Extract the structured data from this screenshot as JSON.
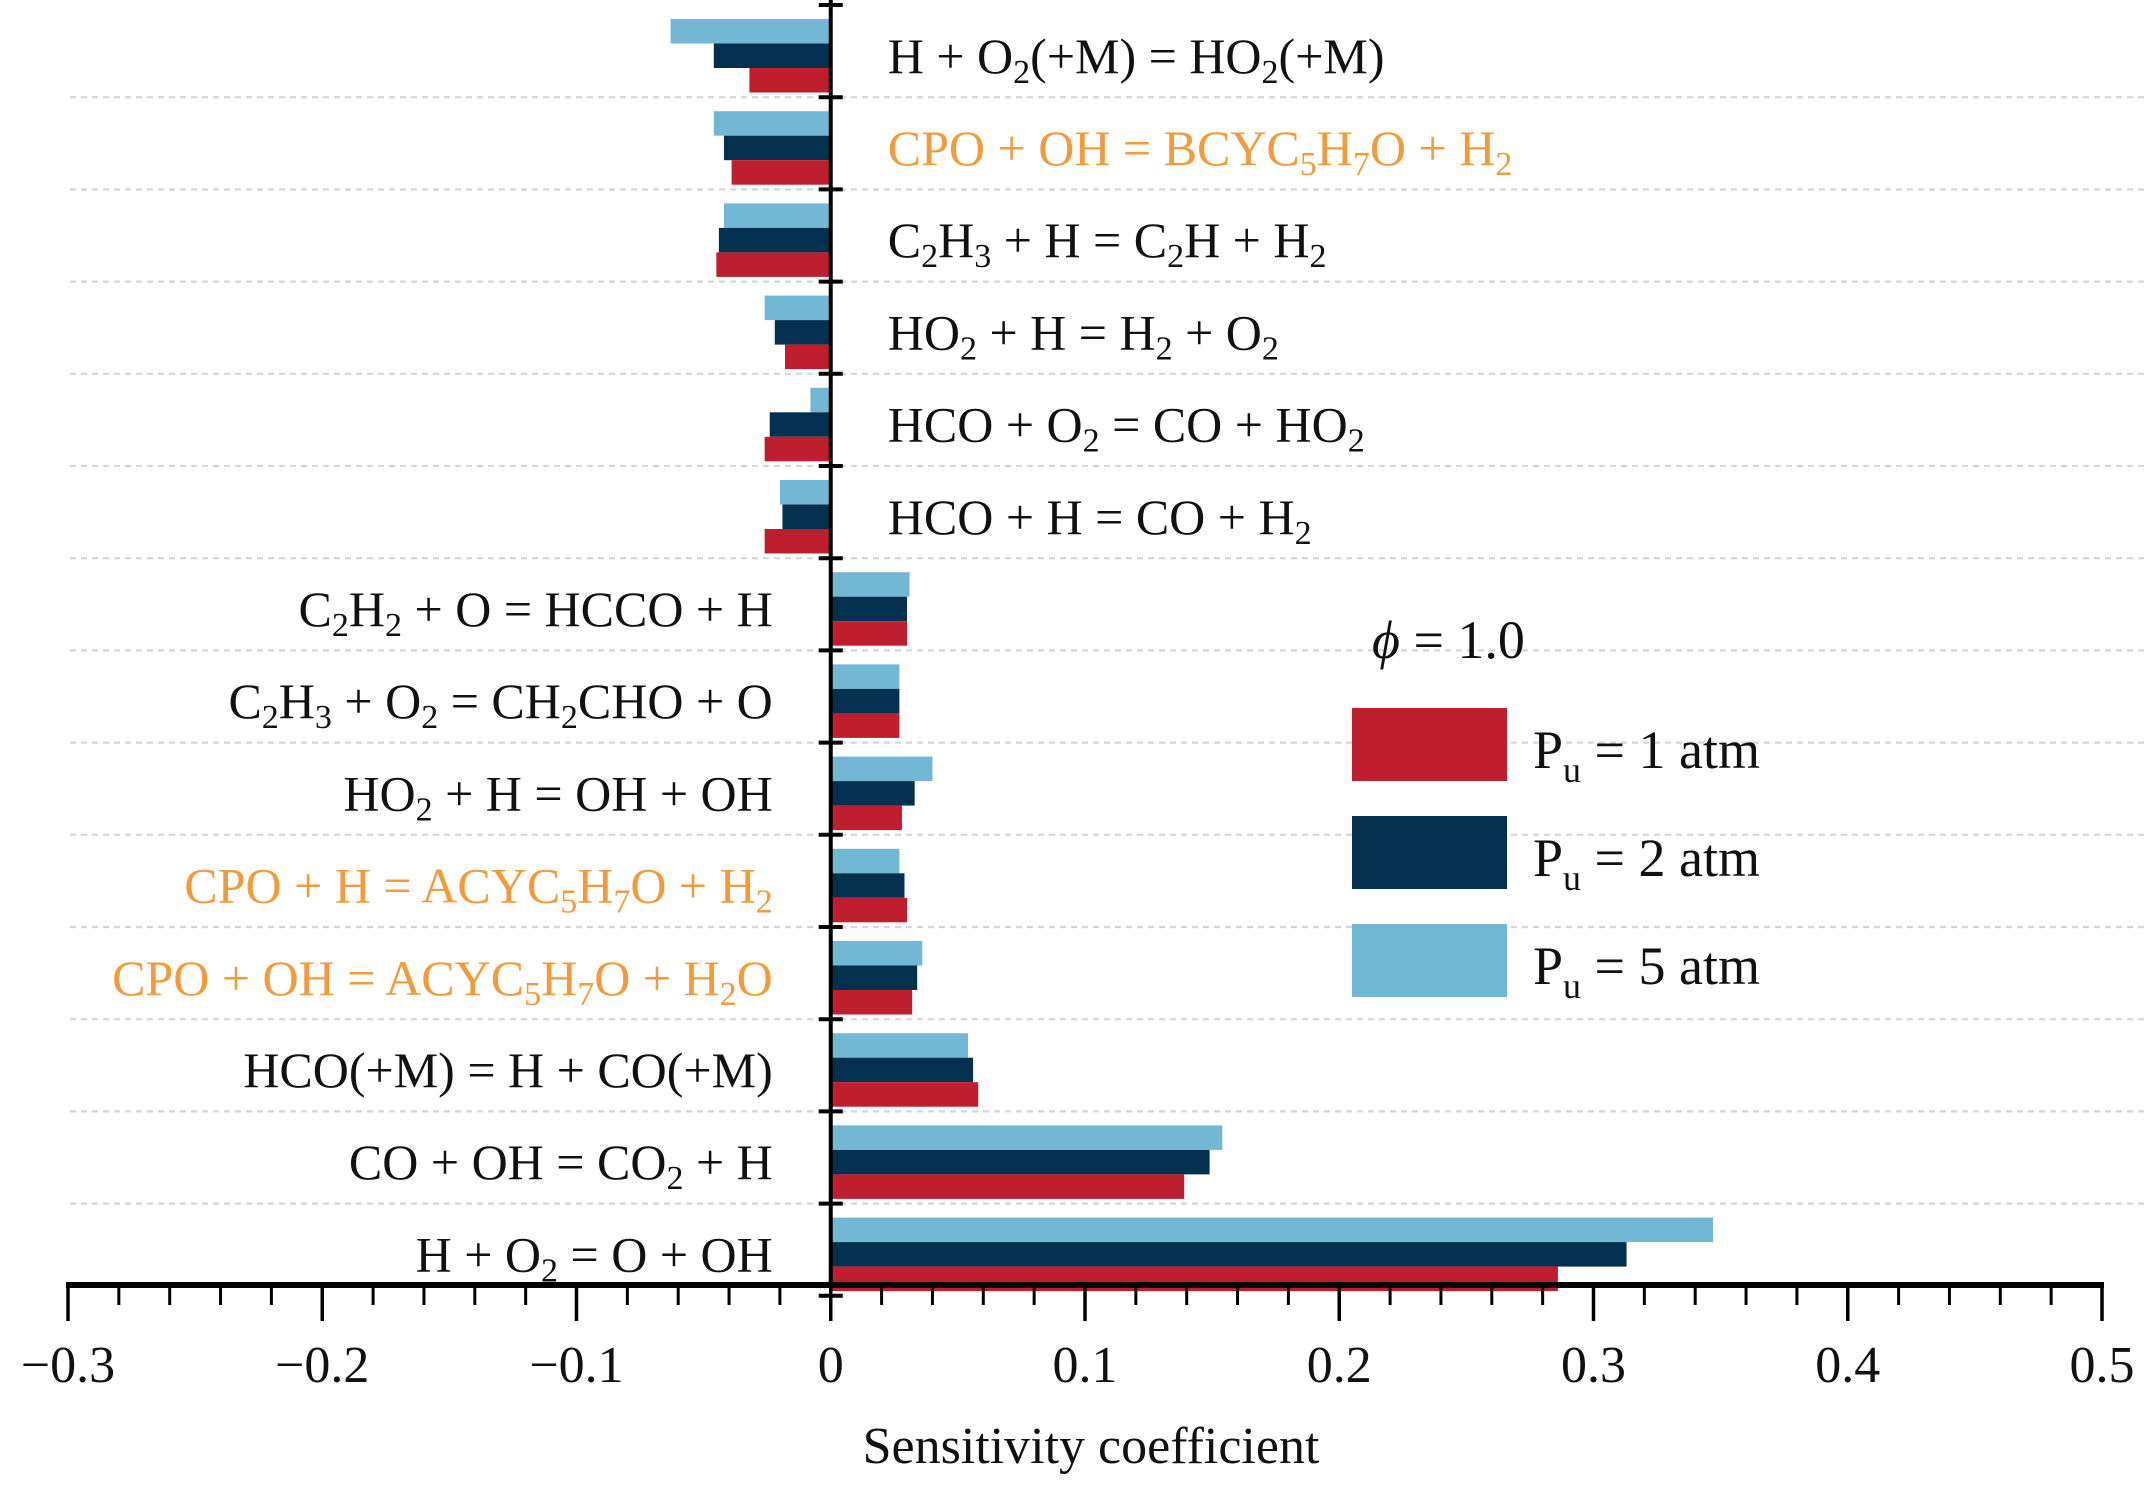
{
  "chart_data": {
    "type": "bar",
    "orientation": "horizontal",
    "title": "",
    "xlabel": "Sensitivity coefficient",
    "ylabel": "",
    "xlim": [
      -0.3,
      0.5
    ],
    "xticks": [
      -0.3,
      -0.2,
      -0.1,
      0,
      0.1,
      0.2,
      0.3,
      0.4,
      0.5
    ],
    "xtick_labels": [
      "−0.3",
      "−0.2",
      "−0.1",
      "0",
      "0.1",
      "0.2",
      "0.3",
      "0.4",
      "0.5"
    ],
    "minor_ticks_per_major": 5,
    "grid": "horizontal dotted",
    "legend": {
      "position": "right",
      "title": "ϕ = 1.0",
      "title_symbol": "ϕ",
      "title_value": " = 1.0",
      "entries": [
        {
          "name": "P_u = 1 atm",
          "main": "P",
          "sub": "u",
          "rest": " = 1 atm",
          "color": "#be1e2d"
        },
        {
          "name": "P_u = 2 atm",
          "main": "P",
          "sub": "u",
          "rest": " = 2 atm",
          "color": "#04304f"
        },
        {
          "name": "P_u = 5 atm",
          "main": "P",
          "sub": "u",
          "rest": " = 5 atm",
          "color": "#72b8d5"
        }
      ]
    },
    "highlight_color": "#f39a3b",
    "categories": [
      {
        "label": "H + O2(+M) = HO2(+M)",
        "parts": [
          [
            "H + O",
            ""
          ],
          [
            "2",
            "sub"
          ],
          [
            "(+M) = HO",
            ""
          ],
          [
            "2",
            "sub"
          ],
          [
            "(+M)",
            ""
          ]
        ],
        "highlight": false
      },
      {
        "label": "CPO + OH = BCYC5H7O + H2",
        "parts": [
          [
            "CPO + OH = BCYC",
            ""
          ],
          [
            "5",
            "sub"
          ],
          [
            "H",
            ""
          ],
          [
            "7",
            "sub"
          ],
          [
            "O + H",
            ""
          ],
          [
            "2",
            "sub"
          ]
        ],
        "highlight": true
      },
      {
        "label": "C2H3 + H = C2H + H2",
        "parts": [
          [
            "C",
            ""
          ],
          [
            "2",
            "sub"
          ],
          [
            "H",
            ""
          ],
          [
            "3",
            "sub"
          ],
          [
            " + H = C",
            ""
          ],
          [
            "2",
            "sub"
          ],
          [
            "H + H",
            ""
          ],
          [
            "2",
            "sub"
          ]
        ],
        "highlight": false
      },
      {
        "label": "HO2 + H = H2 + O2",
        "parts": [
          [
            "HO",
            ""
          ],
          [
            "2",
            "sub"
          ],
          [
            " + H = H",
            ""
          ],
          [
            "2",
            "sub"
          ],
          [
            " + O",
            ""
          ],
          [
            "2",
            "sub"
          ]
        ],
        "highlight": false
      },
      {
        "label": "HCO + O2 = CO + HO2",
        "parts": [
          [
            "HCO + O",
            ""
          ],
          [
            "2",
            "sub"
          ],
          [
            " = CO + HO",
            ""
          ],
          [
            "2",
            "sub"
          ]
        ],
        "highlight": false
      },
      {
        "label": "HCO + H = CO + H2",
        "parts": [
          [
            "HCO + H = CO + H",
            ""
          ],
          [
            "2",
            "sub"
          ]
        ],
        "highlight": false
      },
      {
        "label": "C2H2 + O = HCCO + H",
        "parts": [
          [
            "C",
            ""
          ],
          [
            "2",
            "sub"
          ],
          [
            "H",
            ""
          ],
          [
            "2",
            "sub"
          ],
          [
            " + O = HCCO + H",
            ""
          ]
        ],
        "highlight": false
      },
      {
        "label": "C2H3 + O2 = CH2CHO + O",
        "parts": [
          [
            "C",
            ""
          ],
          [
            "2",
            "sub"
          ],
          [
            "H",
            ""
          ],
          [
            "3",
            "sub"
          ],
          [
            " + O",
            ""
          ],
          [
            "2",
            "sub"
          ],
          [
            " = CH",
            ""
          ],
          [
            "2",
            "sub"
          ],
          [
            "CHO + O",
            ""
          ]
        ],
        "highlight": false
      },
      {
        "label": "HO2 + H = OH + OH",
        "parts": [
          [
            "HO",
            ""
          ],
          [
            "2",
            "sub"
          ],
          [
            " + H = OH + OH",
            ""
          ]
        ],
        "highlight": false
      },
      {
        "label": "CPO + H = ACYC5H7O + H2",
        "parts": [
          [
            "CPO + H = ACYC",
            ""
          ],
          [
            "5",
            "sub"
          ],
          [
            "H",
            ""
          ],
          [
            "7",
            "sub"
          ],
          [
            "O + H",
            ""
          ],
          [
            "2",
            "sub"
          ]
        ],
        "highlight": true
      },
      {
        "label": "CPO + OH = ACYC5H7O + H2O",
        "parts": [
          [
            "CPO + OH = ACYC",
            ""
          ],
          [
            "5",
            "sub"
          ],
          [
            "H",
            ""
          ],
          [
            "7",
            "sub"
          ],
          [
            "O + H",
            ""
          ],
          [
            "2",
            "sub"
          ],
          [
            "O",
            ""
          ]
        ],
        "highlight": true
      },
      {
        "label": "HCO(+M) = H + CO(+M)",
        "parts": [
          [
            "HCO(+M) = H + CO(+M)",
            ""
          ]
        ],
        "highlight": false
      },
      {
        "label": "CO + OH = CO2 + H",
        "parts": [
          [
            "CO + OH = CO",
            ""
          ],
          [
            "2",
            "sub"
          ],
          [
            " + H",
            ""
          ]
        ],
        "highlight": false
      },
      {
        "label": "H + O2 = O + OH",
        "parts": [
          [
            "H + O",
            ""
          ],
          [
            "2",
            "sub"
          ],
          [
            " = O + OH",
            ""
          ]
        ],
        "highlight": false
      }
    ],
    "series": [
      {
        "name": "P_u = 5 atm",
        "color": "#72b8d5",
        "values": [
          -0.063,
          -0.046,
          -0.042,
          -0.026,
          -0.008,
          -0.02,
          0.031,
          0.027,
          0.04,
          0.027,
          0.036,
          0.054,
          0.154,
          0.347
        ]
      },
      {
        "name": "P_u = 2 atm",
        "color": "#04304f",
        "values": [
          -0.046,
          -0.042,
          -0.044,
          -0.022,
          -0.024,
          -0.019,
          0.03,
          0.027,
          0.033,
          0.029,
          0.034,
          0.056,
          0.149,
          0.313
        ]
      },
      {
        "name": "P_u = 1 atm",
        "color": "#be1e2d",
        "values": [
          -0.032,
          -0.039,
          -0.045,
          -0.018,
          -0.026,
          -0.026,
          0.03,
          0.027,
          0.028,
          0.03,
          0.032,
          0.058,
          0.139,
          0.286
        ]
      }
    ]
  }
}
